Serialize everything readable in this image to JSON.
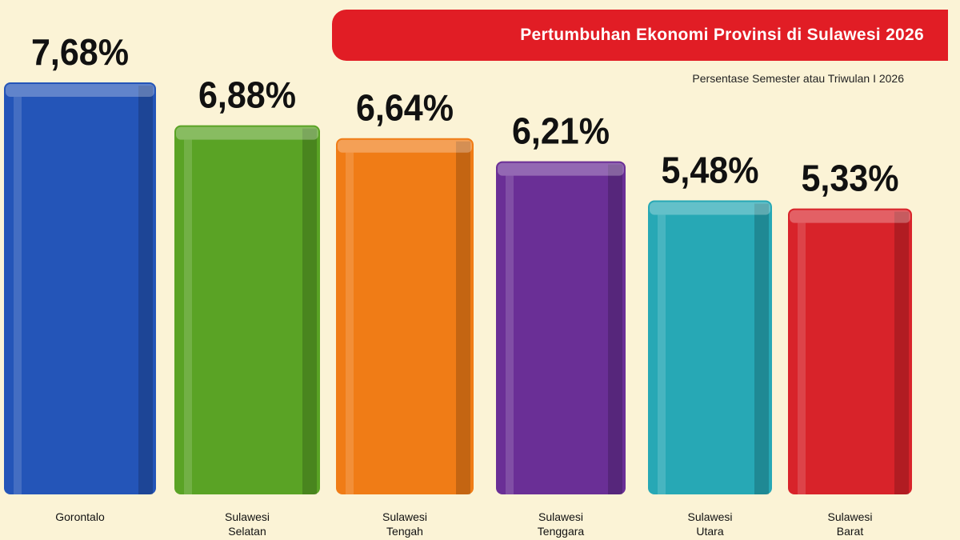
{
  "chart_data": {
    "type": "bar",
    "title": "Pertumbuhan Ekonomi Provinsi di Sulawesi 2026",
    "subtitle": "Persentase Semester atau Triwulan I 2026",
    "categories": [
      "Gorontalo",
      "Sulawesi Selatan",
      "Sulawesi Tengah",
      "Sulawesi Tenggara",
      "Sulawesi Utara",
      "Sulawesi Barat"
    ],
    "values": [
      7.68,
      6.88,
      6.64,
      6.21,
      5.48,
      5.33
    ],
    "value_labels": [
      "7,68%",
      "6,88%",
      "6,64%",
      "6,21%",
      "5,48%",
      "5,33%"
    ],
    "colors": [
      "#2455b8",
      "#5aa325",
      "#f07c16",
      "#6a2f96",
      "#27a8b5",
      "#d8232a"
    ]
  }
}
